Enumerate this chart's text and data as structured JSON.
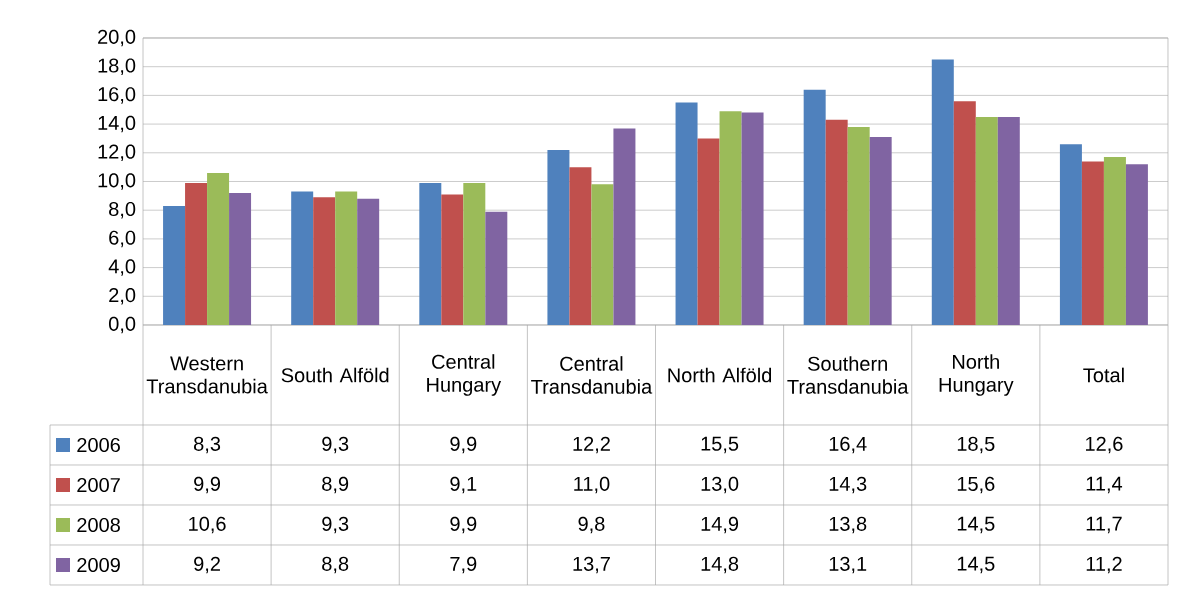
{
  "chart_data": {
    "type": "bar",
    "categories": [
      "Western Transdanubia",
      "South Alföld",
      "Central Hungary",
      "Central Transdanubia",
      "North Alföld",
      "Southern Transdanubia",
      "North Hungary",
      "Total"
    ],
    "series": [
      {
        "name": "2006",
        "color": "#4f81bd",
        "values": [
          8.3,
          9.3,
          9.9,
          12.2,
          15.5,
          16.4,
          18.5,
          12.6
        ],
        "value_labels": [
          "8,3",
          "9,3",
          "9,9",
          "12,2",
          "15,5",
          "16,4",
          "18,5",
          "12,6"
        ]
      },
      {
        "name": "2007",
        "color": "#c0504d",
        "values": [
          9.9,
          8.9,
          9.1,
          11.0,
          13.0,
          14.3,
          15.6,
          11.4
        ],
        "value_labels": [
          "9,9",
          "8,9",
          "9,1",
          "11,0",
          "13,0",
          "14,3",
          "15,6",
          "11,4"
        ]
      },
      {
        "name": "2008",
        "color": "#9bbb59",
        "values": [
          10.6,
          9.3,
          9.9,
          9.8,
          14.9,
          13.8,
          14.5,
          11.7
        ],
        "value_labels": [
          "10,6",
          "9,3",
          "9,9",
          "9,8",
          "14,9",
          "13,8",
          "14,5",
          "11,7"
        ]
      },
      {
        "name": "2009",
        "color": "#8064a2",
        "values": [
          9.2,
          8.8,
          7.9,
          13.7,
          14.8,
          13.1,
          14.5,
          11.2
        ],
        "value_labels": [
          "9,2",
          "8,8",
          "7,9",
          "13,7",
          "14,8",
          "13,1",
          "14,5",
          "11,2"
        ]
      }
    ],
    "ylim": [
      0,
      20
    ],
    "yticks": [
      {
        "value": 0,
        "label": "0,0"
      },
      {
        "value": 2,
        "label": "2,0"
      },
      {
        "value": 4,
        "label": "4,0"
      },
      {
        "value": 6,
        "label": "6,0"
      },
      {
        "value": 8,
        "label": "8,0"
      },
      {
        "value": 10,
        "label": "10,0"
      },
      {
        "value": 12,
        "label": "12,0"
      },
      {
        "value": 14,
        "label": "14,0"
      },
      {
        "value": 16,
        "label": "16,0"
      },
      {
        "value": 18,
        "label": "18,0"
      },
      {
        "value": 20,
        "label": "20,0"
      }
    ],
    "grid": "y",
    "legend": "bottom left"
  }
}
